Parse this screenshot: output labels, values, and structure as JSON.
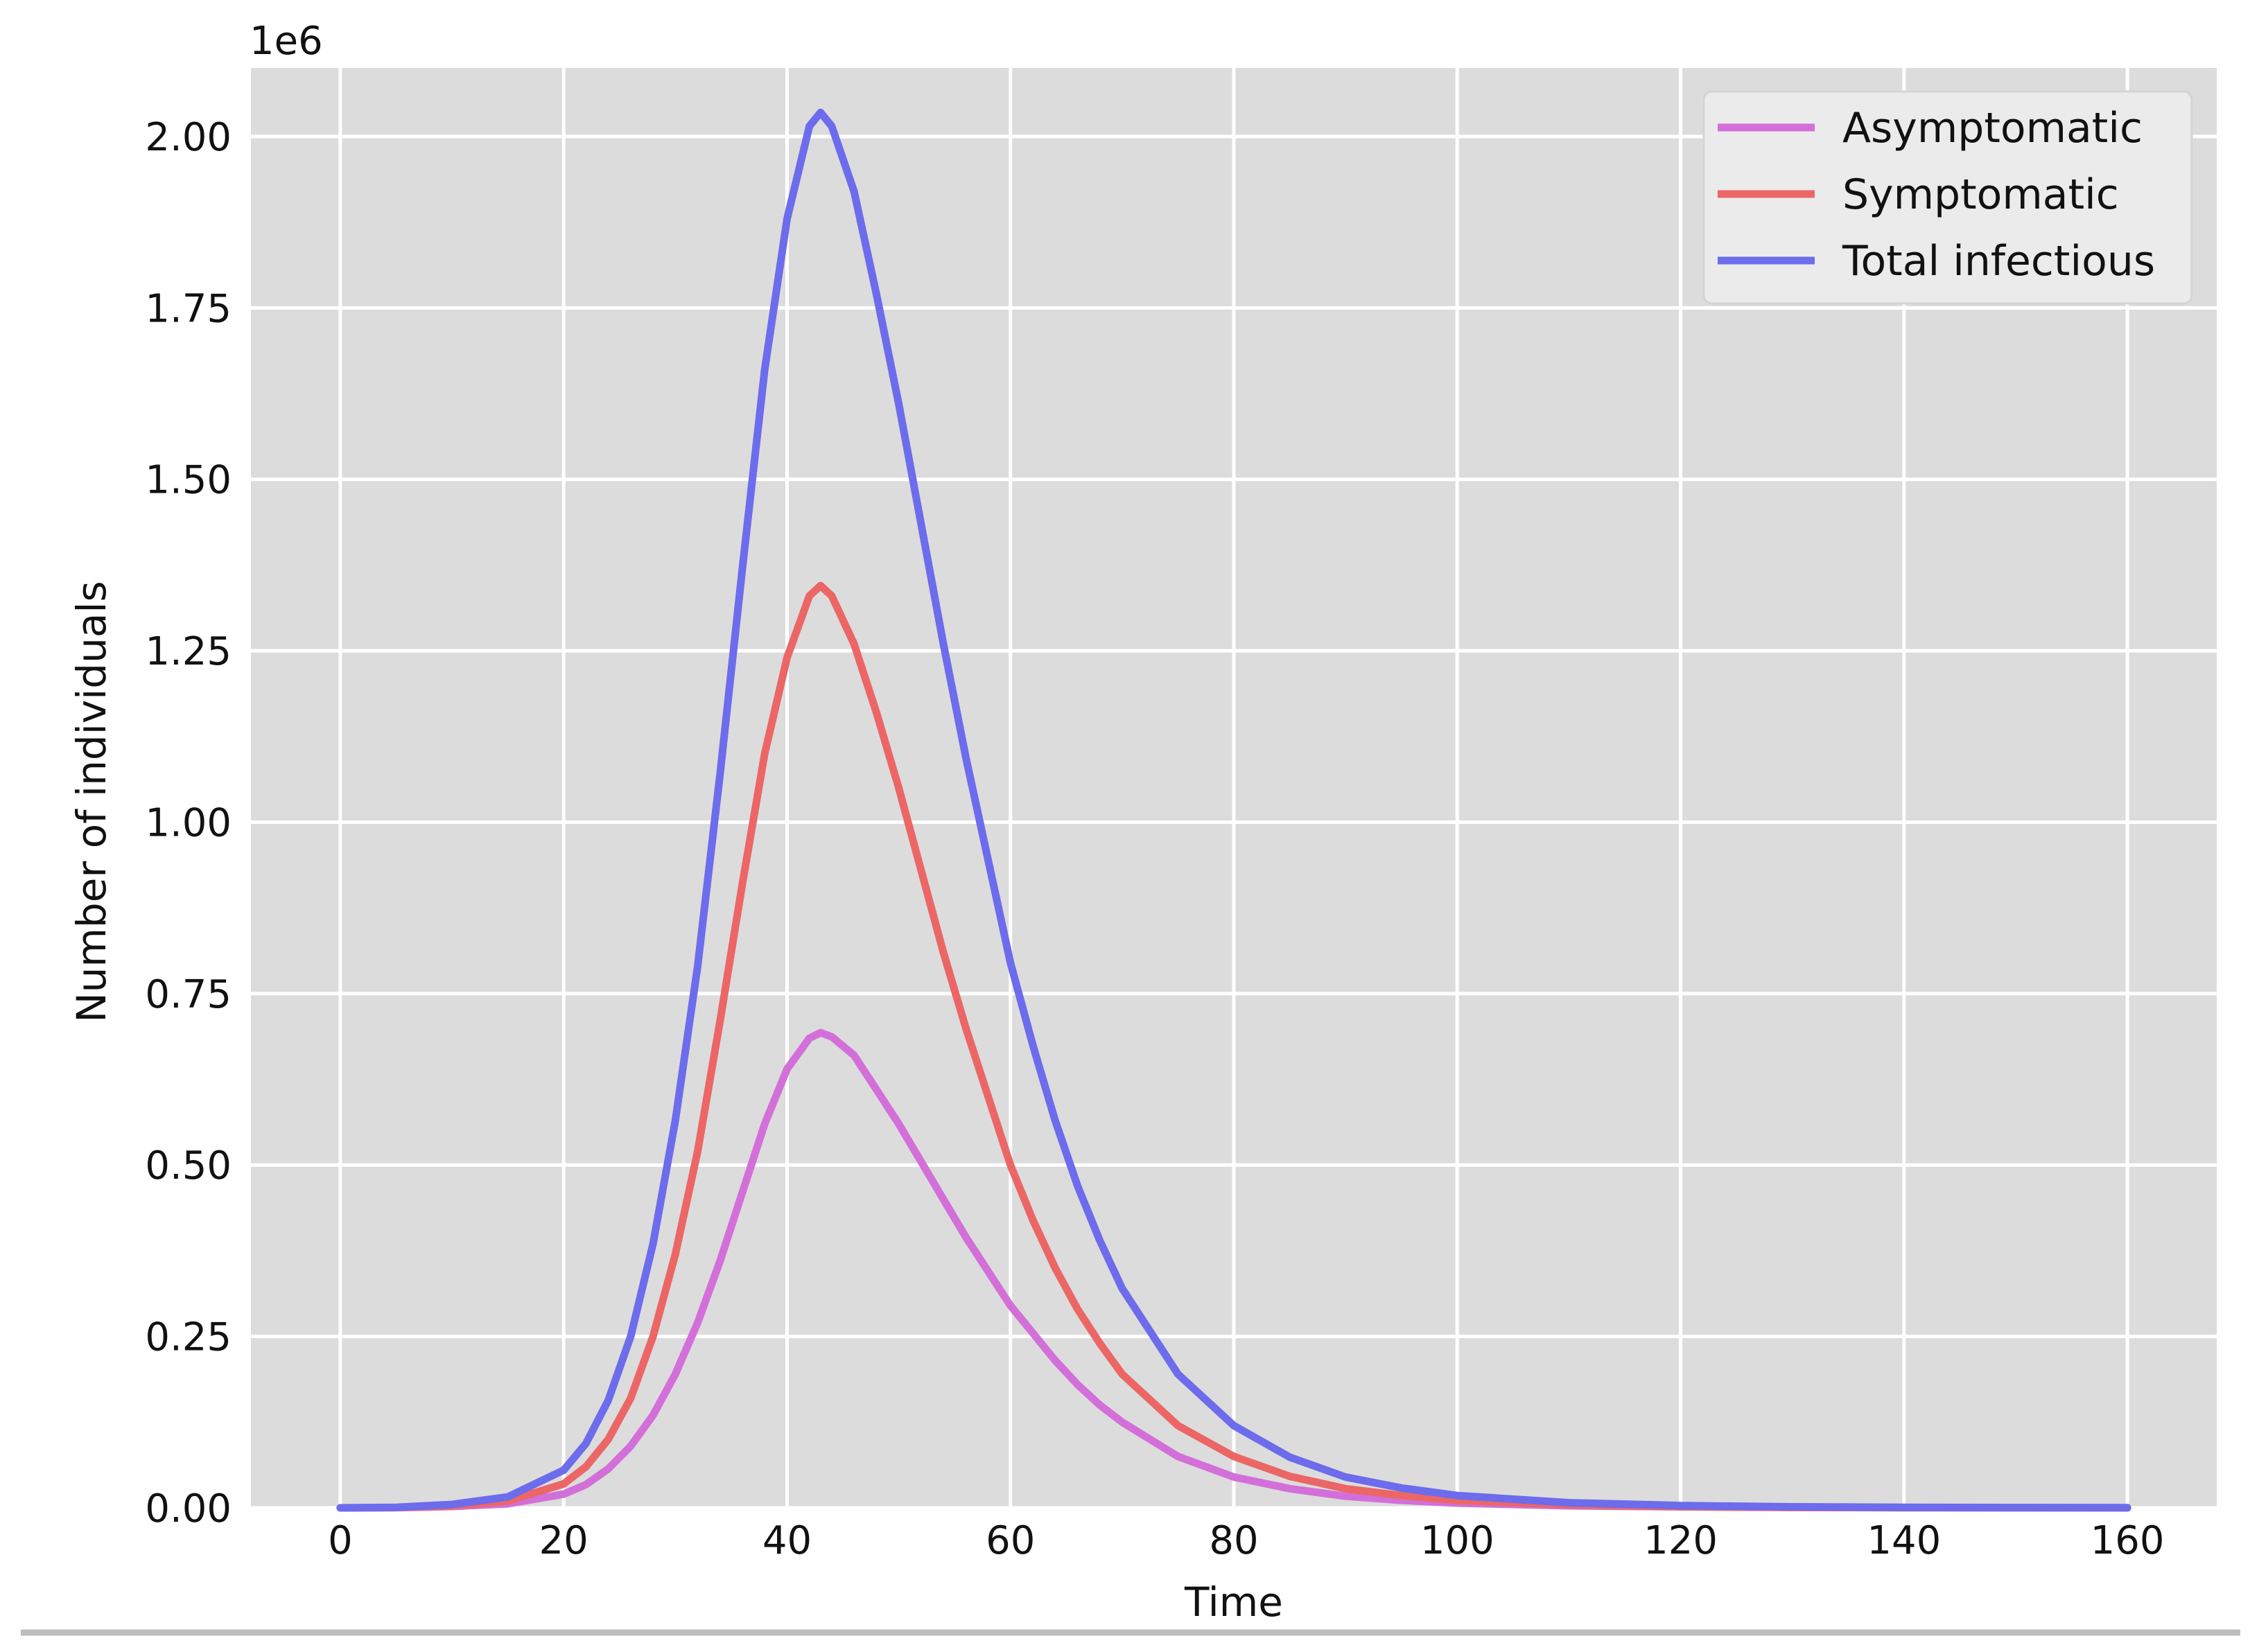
{
  "chart_data": {
    "type": "line",
    "title": "",
    "xlabel": "Time",
    "ylabel": "Number of individuals",
    "y_offset_label": "1e6",
    "xlim": [
      -8,
      168
    ],
    "ylim": [
      0,
      2.1
    ],
    "x_ticks": [
      0,
      20,
      40,
      60,
      80,
      100,
      120,
      140,
      160
    ],
    "x_tick_labels": [
      "0",
      "20",
      "40",
      "60",
      "80",
      "100",
      "120",
      "140",
      "160"
    ],
    "y_ticks": [
      0,
      0.25,
      0.5,
      0.75,
      1.0,
      1.25,
      1.5,
      1.75,
      2.0
    ],
    "y_tick_labels": [
      "0.00",
      "0.25",
      "0.50",
      "0.75",
      "1.00",
      "1.25",
      "1.50",
      "1.75",
      "2.00"
    ],
    "grid": true,
    "legend_position": "top-right",
    "x": [
      0,
      5,
      10,
      15,
      20,
      22,
      24,
      26,
      28,
      30,
      32,
      34,
      36,
      38,
      40,
      42,
      43,
      44,
      46,
      48,
      50,
      52,
      54,
      56,
      58,
      60,
      62,
      64,
      66,
      68,
      70,
      75,
      80,
      85,
      90,
      95,
      100,
      110,
      120,
      130,
      140,
      150,
      160
    ],
    "series": [
      {
        "name": "Asymptomatic",
        "color": "#d36fd9",
        "values": [
          0.0,
          0.0003,
          0.002,
          0.006,
          0.02,
          0.034,
          0.057,
          0.09,
          0.135,
          0.195,
          0.27,
          0.36,
          0.46,
          0.56,
          0.64,
          0.685,
          0.693,
          0.687,
          0.66,
          0.61,
          0.56,
          0.505,
          0.45,
          0.395,
          0.345,
          0.295,
          0.255,
          0.215,
          0.18,
          0.15,
          0.125,
          0.075,
          0.045,
          0.028,
          0.017,
          0.011,
          0.007,
          0.003,
          0.0015,
          0.0007,
          0.0003,
          0.0002,
          0.0001
        ]
      },
      {
        "name": "Symptomatic",
        "color": "#ec6666",
        "values": [
          0.0,
          0.0005,
          0.003,
          0.01,
          0.035,
          0.06,
          0.1,
          0.16,
          0.25,
          0.37,
          0.52,
          0.71,
          0.91,
          1.1,
          1.24,
          1.33,
          1.345,
          1.33,
          1.26,
          1.16,
          1.05,
          0.93,
          0.81,
          0.7,
          0.6,
          0.5,
          0.42,
          0.35,
          0.29,
          0.24,
          0.195,
          0.12,
          0.075,
          0.046,
          0.028,
          0.018,
          0.011,
          0.0045,
          0.0018,
          0.0008,
          0.0004,
          0.0002,
          0.0001
        ]
      },
      {
        "name": "Total infectious",
        "color": "#6c6cec",
        "values": [
          0.0,
          0.0008,
          0.005,
          0.016,
          0.055,
          0.094,
          0.157,
          0.25,
          0.385,
          0.565,
          0.79,
          1.07,
          1.37,
          1.66,
          1.88,
          2.015,
          2.035,
          2.015,
          1.92,
          1.77,
          1.61,
          1.435,
          1.26,
          1.095,
          0.945,
          0.795,
          0.675,
          0.565,
          0.47,
          0.39,
          0.32,
          0.195,
          0.12,
          0.074,
          0.045,
          0.029,
          0.018,
          0.0075,
          0.0033,
          0.0015,
          0.0007,
          0.0004,
          0.0002
        ]
      }
    ]
  },
  "colors": {
    "plot_background": "#dcdcdc",
    "grid": "#ffffff",
    "legend_background": "#ebebeb",
    "bottom_rule": "#bdbdbd"
  }
}
